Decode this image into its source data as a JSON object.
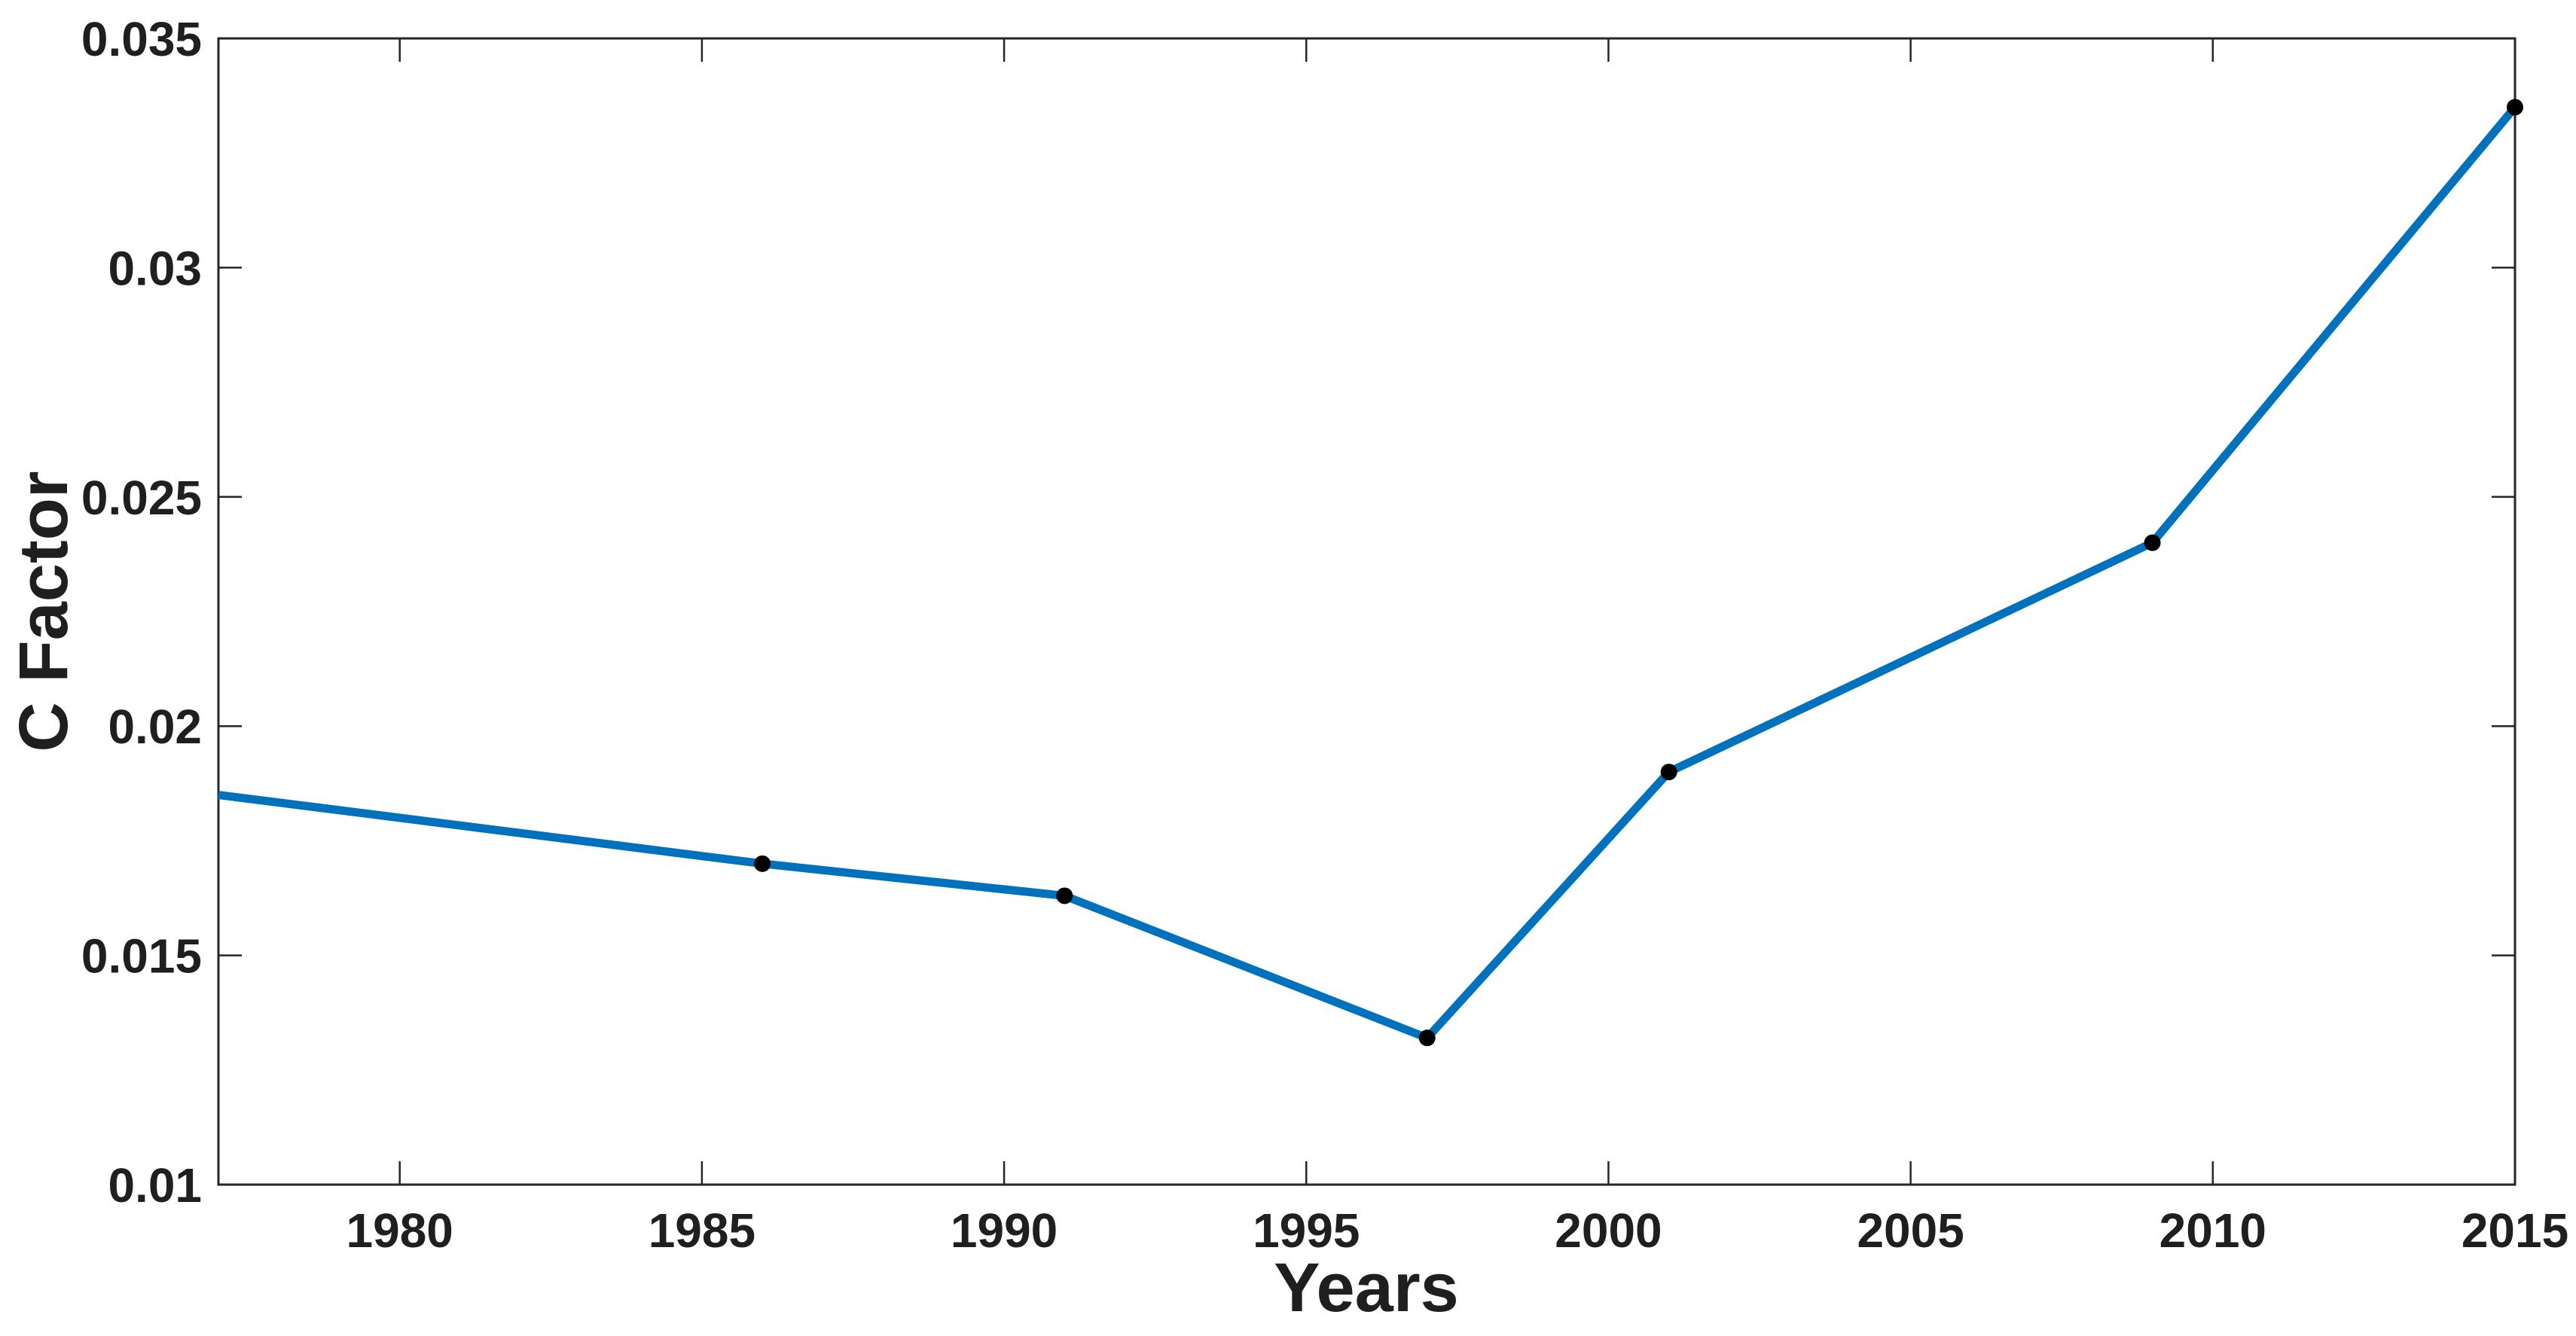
{
  "figure": {
    "background": "#ffffff"
  },
  "chart_data": {
    "type": "line",
    "title": "",
    "xlabel": "Years",
    "ylabel": "C Factor",
    "x": [
      1977,
      1986,
      1991,
      1997,
      2001,
      2009,
      2015
    ],
    "y": [
      0.0185,
      0.017,
      0.0163,
      0.0132,
      0.019,
      0.024,
      0.0335
    ],
    "marker_points": {
      "x": [
        1986,
        1991,
        1997,
        2001,
        2009,
        2015
      ],
      "y": [
        0.017,
        0.0163,
        0.0132,
        0.019,
        0.024,
        0.0335
      ]
    },
    "xlim": [
      1977,
      2015
    ],
    "ylim": [
      0.01,
      0.035
    ],
    "x_ticks": [
      1980,
      1985,
      1990,
      1995,
      2000,
      2005,
      2010,
      2015
    ],
    "x_tick_labels": [
      "1980",
      "1985",
      "1990",
      "1995",
      "2000",
      "2005",
      "2010",
      "2015"
    ],
    "y_ticks": [
      0.01,
      0.015,
      0.02,
      0.025,
      0.03,
      0.035
    ],
    "y_tick_labels": [
      "0.01",
      "0.015",
      "0.02",
      "0.025",
      "0.03",
      "0.035"
    ],
    "grid": false,
    "legend": null,
    "line_color": "#0072BD",
    "marker_color": "#000000",
    "axis_color": "#262626",
    "text_color": "#1f1f1f"
  }
}
